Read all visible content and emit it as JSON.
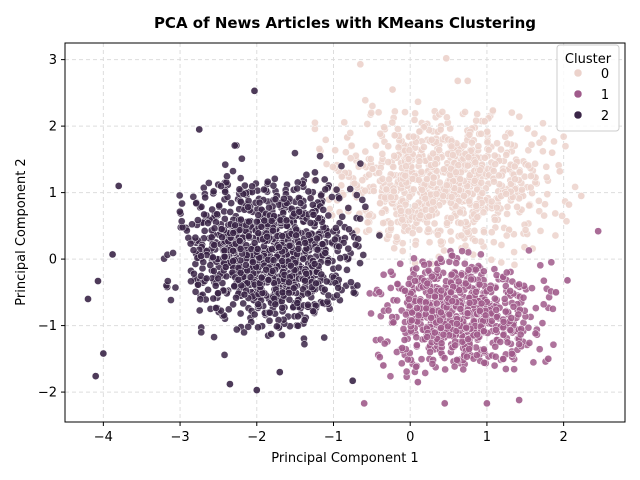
{
  "chart_data": {
    "type": "scatter",
    "title": "PCA of News Articles with KMeans Clustering",
    "xlabel": "Principal Component 1",
    "ylabel": "Principal Component 2",
    "xlim": [
      -4.5,
      2.8
    ],
    "ylim": [
      -2.45,
      3.25
    ],
    "xticks": [
      -4,
      -3,
      -2,
      -1,
      0,
      1,
      2
    ],
    "yticks": [
      -2,
      -1,
      0,
      1,
      2,
      3
    ],
    "grid": true,
    "legend": {
      "title": "Cluster",
      "position": "top-right"
    },
    "series": [
      {
        "name": "0",
        "color": "#ecd2cb",
        "core": {
          "x_range": [
            -1.3,
            2.1
          ],
          "y_range": [
            -0.1,
            2.4
          ],
          "count": 900
        },
        "points": [
          [
            0.47,
            3.02
          ],
          [
            -0.65,
            2.93
          ],
          [
            2.23,
            0.95
          ],
          [
            2.07,
            0.82
          ],
          [
            0.62,
            2.68
          ],
          [
            0.75,
            2.68
          ],
          [
            -0.23,
            2.55
          ],
          [
            1.85,
            1.6
          ],
          [
            1.95,
            1.32
          ],
          [
            -1.25,
            1.18
          ]
        ]
      },
      {
        "name": "1",
        "color": "#a05b8b",
        "core": {
          "x_range": [
            -0.6,
            1.9
          ],
          "y_range": [
            -1.85,
            0.2
          ],
          "count": 700
        },
        "points": [
          [
            2.45,
            0.42
          ],
          [
            -0.6,
            -2.17
          ],
          [
            0.45,
            -2.17
          ],
          [
            1.0,
            -2.17
          ],
          [
            1.42,
            -2.12
          ],
          [
            2.05,
            -0.32
          ],
          [
            1.9,
            -0.5
          ],
          [
            0.1,
            -1.85
          ],
          [
            -0.35,
            -1.6
          ],
          [
            1.8,
            -1.5
          ]
        ]
      },
      {
        "name": "2",
        "color": "#3a2547",
        "core": {
          "x_range": [
            -3.2,
            -0.4
          ],
          "y_range": [
            -1.35,
            1.55
          ],
          "count": 1100
        },
        "points": [
          [
            -4.2,
            -0.6
          ],
          [
            -4.1,
            -1.76
          ],
          [
            -2.03,
            2.53
          ],
          [
            -3.8,
            1.1
          ],
          [
            -2.0,
            -1.97
          ],
          [
            -2.35,
            -1.88
          ],
          [
            -4.0,
            -1.42
          ],
          [
            -1.7,
            -1.7
          ],
          [
            -4.07,
            -0.33
          ],
          [
            -2.75,
            1.95
          ],
          [
            -3.88,
            0.07
          ],
          [
            -0.75,
            -1.83
          ]
        ]
      }
    ]
  }
}
